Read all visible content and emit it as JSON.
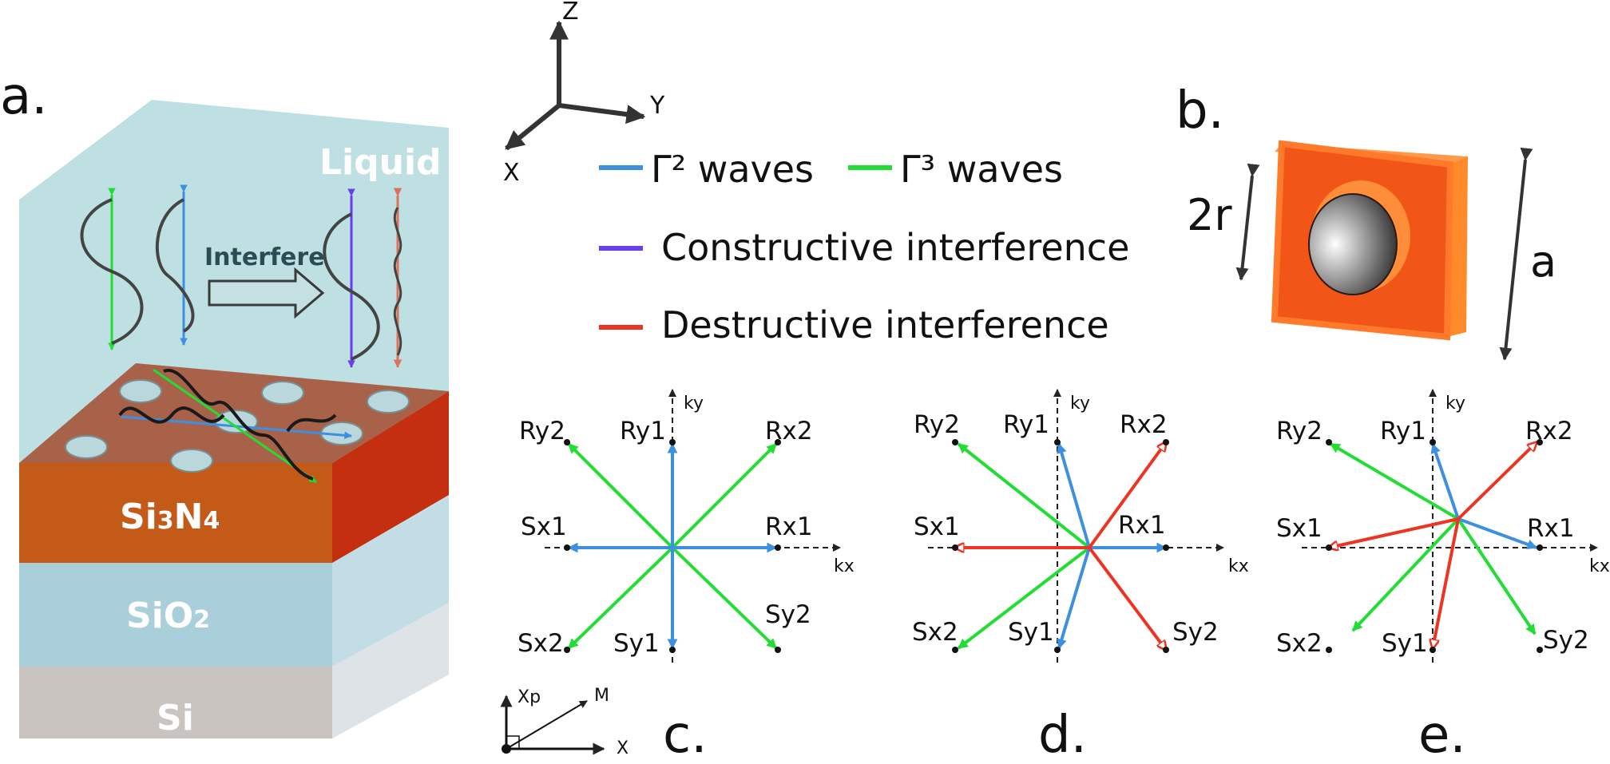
{
  "panels": {
    "a": "a.",
    "b": "b.",
    "c": "c.",
    "d": "d.",
    "e": "e."
  },
  "layers": {
    "liquid": "Liquid",
    "si3n4": "Si3N4",
    "sio2": "SiO2",
    "si": "Si"
  },
  "interfere_label": "Interfere",
  "axes3d": {
    "z": "Z",
    "y": "Y",
    "x": "X"
  },
  "legend": {
    "gamma2": "Γ² waves",
    "gamma3": "Γ³ waves",
    "constructive": "Constructive interference",
    "destructive": "Destructive interference"
  },
  "unit_cell": {
    "radius_label": "2r",
    "period_label": "a"
  },
  "kspace": {
    "kx": "kx",
    "ky": "ky",
    "points": {
      "Rx1": "Rx1",
      "Rx2": "Rx2",
      "Ry1": "Ry1",
      "Ry2": "Ry2",
      "Sx1": "Sx1",
      "Sx2": "Sx2",
      "Sy1": "Sy1",
      "Sy2": "Sy2"
    }
  },
  "small_axes": {
    "xp": "Xp",
    "m": "M",
    "x": "X"
  },
  "colors": {
    "gamma2": "#3d8fe0",
    "gamma3": "#22dd33",
    "constructive": "#6a3df0",
    "destructive": "#ee3322",
    "liquid": "#bfe0e2",
    "si3n4": "#c45a18",
    "si3n4_top": "#a8624a",
    "sio2": "#a9cfdb",
    "si": "#c9c4c0",
    "unit_cell": "#f25518"
  }
}
